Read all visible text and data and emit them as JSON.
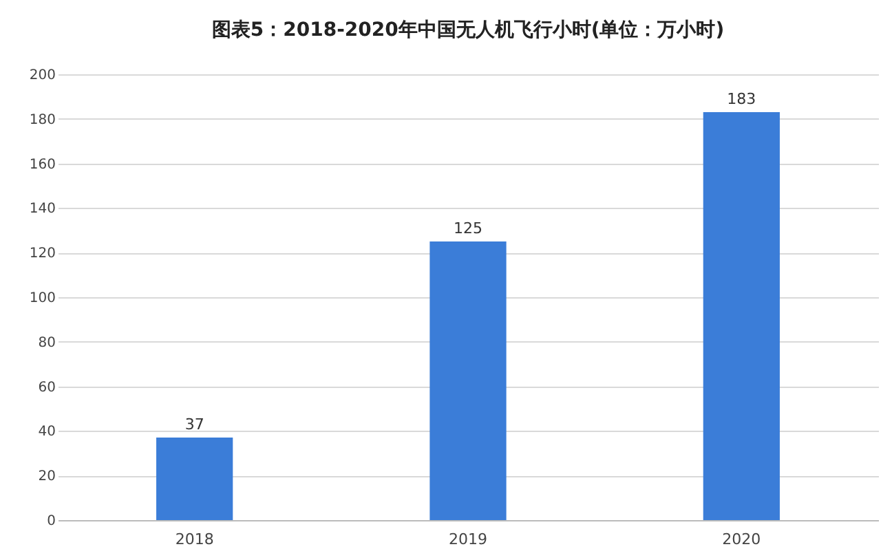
{
  "chart_data": {
    "type": "bar",
    "title": "图表5：2018-2020年中国无人机飞行小时(单位：万小时)",
    "categories": [
      "2018",
      "2019",
      "2020"
    ],
    "values": [
      37,
      125,
      183
    ],
    "color": "#3b7dd8",
    "ylim": [
      0,
      200
    ],
    "yticks": [
      0,
      20,
      40,
      60,
      80,
      100,
      120,
      140,
      160,
      180,
      200
    ],
    "grid": "y",
    "data_labels": true
  }
}
